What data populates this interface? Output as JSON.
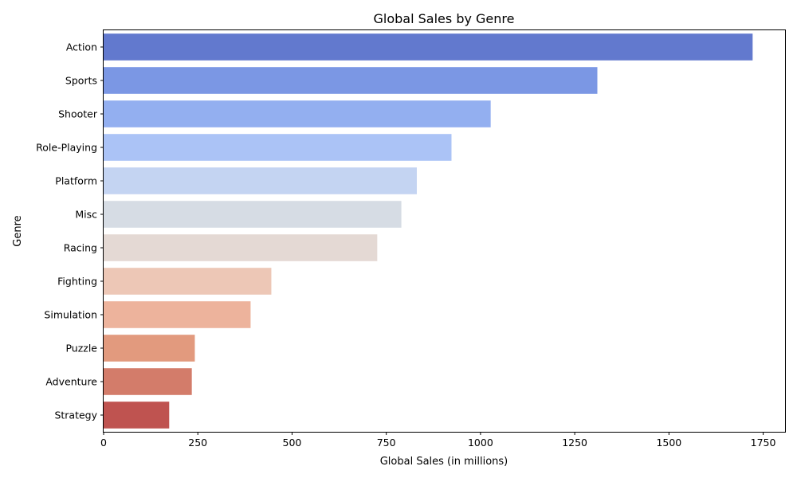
{
  "chart_data": {
    "type": "bar",
    "orientation": "horizontal",
    "title": "Global Sales by Genre",
    "xlabel": "Global Sales (in millions)",
    "ylabel": "Genre",
    "xlim": [
      0,
      1808
    ],
    "xticks": [
      0,
      250,
      500,
      750,
      1000,
      1250,
      1500,
      1750
    ],
    "categories": [
      "Action",
      "Sports",
      "Shooter",
      "Role-Playing",
      "Platform",
      "Misc",
      "Racing",
      "Fighting",
      "Simulation",
      "Puzzle",
      "Adventure",
      "Strategy"
    ],
    "values": [
      1722,
      1310,
      1027,
      923,
      831,
      790,
      726,
      445,
      390,
      242,
      234,
      174
    ],
    "colors": [
      "#6279ce",
      "#7b97e4",
      "#93aff0",
      "#abc3f6",
      "#c4d4f2",
      "#d6dce4",
      "#e4d9d4",
      "#edc7b6",
      "#edb39c",
      "#e29a7e",
      "#d37c6a",
      "#bf5350"
    ],
    "grid": false,
    "legend": "none"
  }
}
